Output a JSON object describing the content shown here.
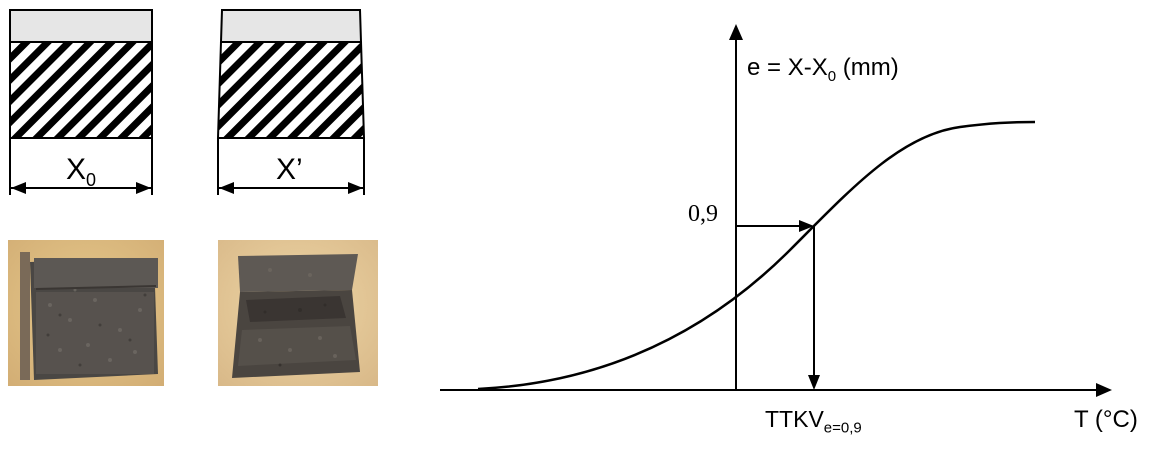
{
  "specimens": {
    "before": {
      "label_main": "X",
      "label_sub": "0"
    },
    "after": {
      "label": "X’"
    }
  },
  "chart_data": {
    "type": "line",
    "title": "",
    "ylabel": {
      "main": "e = X-X",
      "sub": "0",
      "unit": " (mm)"
    },
    "xlabel": "T (°C)",
    "marker": {
      "y_label": "0,9",
      "x_label_main": "TTKV",
      "x_label_sub": "e=0,9"
    },
    "series": [
      {
        "values_description": "",
        "curve": "sigmoid"
      }
    ]
  }
}
